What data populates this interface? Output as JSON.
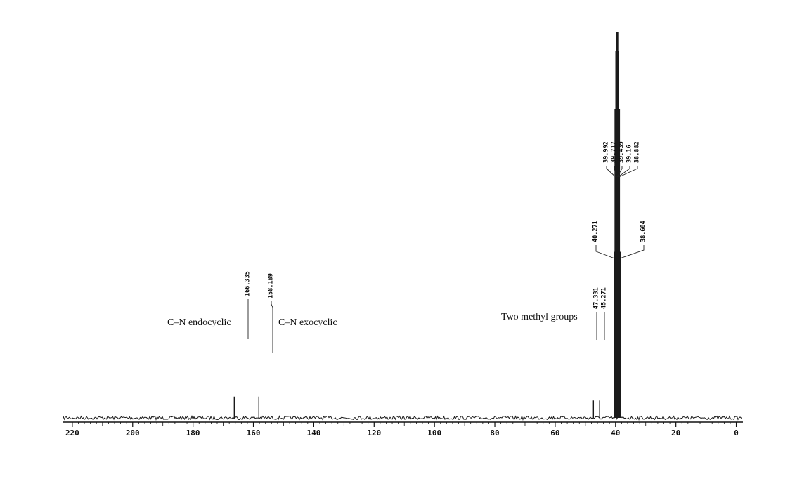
{
  "chart_data": {
    "type": "nmr",
    "x": [
      166.335,
      158.189,
      47.331,
      45.271,
      40.271,
      39.992,
      39.717,
      39.439,
      39.16,
      38.882,
      38.604
    ],
    "values": [
      5.5,
      5.5,
      4.5,
      4.5,
      43,
      80,
      95,
      100,
      95,
      80,
      43
    ],
    "color": "#1a1a1a",
    "xlim": [
      223,
      -2.2
    ],
    "xticks": [
      220,
      200,
      180,
      160,
      140,
      120,
      100,
      80,
      60,
      40,
      20,
      0
    ],
    "ylim": [
      0,
      100
    ],
    "annotations": [
      "C–N endocyclic",
      "C–N exocyclic",
      "Two methyl groups"
    ]
  }
}
